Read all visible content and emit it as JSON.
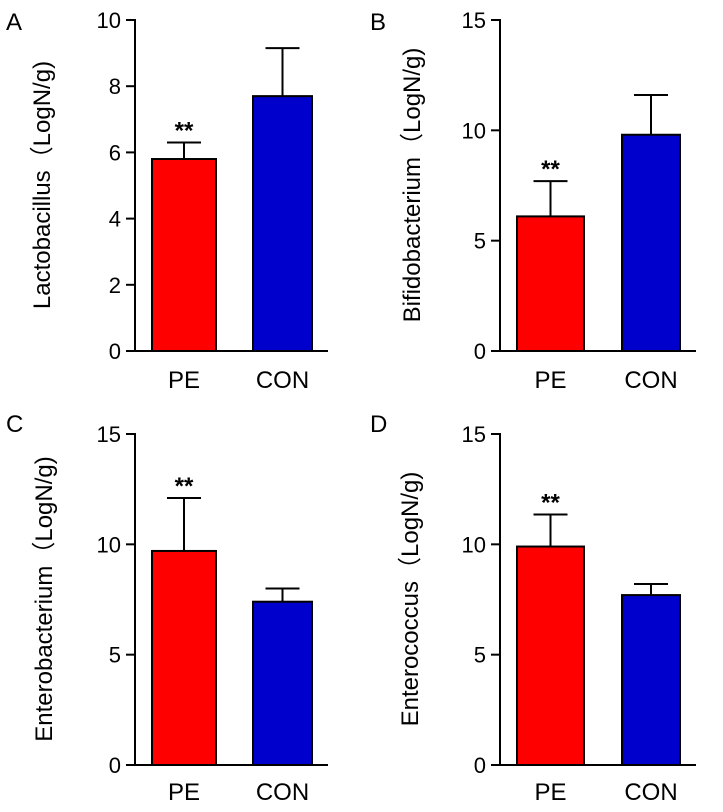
{
  "colors": {
    "pe": "#ff0000",
    "con": "#0000cc",
    "axis": "#000000"
  },
  "chart_data": [
    {
      "type": "bar",
      "panel": "A",
      "categories": [
        "PE",
        "CON"
      ],
      "values": [
        5.8,
        7.7
      ],
      "errors": [
        0.5,
        1.45
      ],
      "significance": [
        "**",
        ""
      ],
      "ylabel": "Lactobacillus（LogN/g)",
      "ylim": [
        0,
        10
      ],
      "yticks": [
        0,
        2,
        4,
        6,
        8,
        10
      ],
      "ytick_labels": [
        "0",
        "2",
        "4",
        "6",
        "8",
        "10"
      ]
    },
    {
      "type": "bar",
      "panel": "B",
      "categories": [
        "PE",
        "CON"
      ],
      "values": [
        6.1,
        9.8
      ],
      "errors": [
        1.6,
        1.8
      ],
      "significance": [
        "**",
        ""
      ],
      "ylabel": "Bifidobacterium（LogN/g)",
      "ylim": [
        0,
        15
      ],
      "yticks": [
        0,
        5,
        10,
        15
      ],
      "ytick_labels": [
        "0",
        "5",
        "10",
        "15"
      ]
    },
    {
      "type": "bar",
      "panel": "C",
      "categories": [
        "PE",
        "CON"
      ],
      "values": [
        9.7,
        7.4
      ],
      "errors": [
        2.4,
        0.6
      ],
      "significance": [
        "**",
        ""
      ],
      "ylabel": "Enterobacterium（LogN/g)",
      "ylim": [
        0,
        15
      ],
      "yticks": [
        0,
        5,
        10,
        15
      ],
      "ytick_labels": [
        "0",
        "5",
        "10",
        "15"
      ]
    },
    {
      "type": "bar",
      "panel": "D",
      "categories": [
        "PE",
        "CON"
      ],
      "values": [
        9.9,
        7.7
      ],
      "errors": [
        1.45,
        0.5
      ],
      "significance": [
        "**",
        ""
      ],
      "ylabel": "Enterococcus（LogN/g)",
      "ylim": [
        0,
        15
      ],
      "yticks": [
        0,
        5,
        10,
        15
      ],
      "ytick_labels": [
        "0",
        "5",
        "10",
        "15"
      ]
    }
  ]
}
